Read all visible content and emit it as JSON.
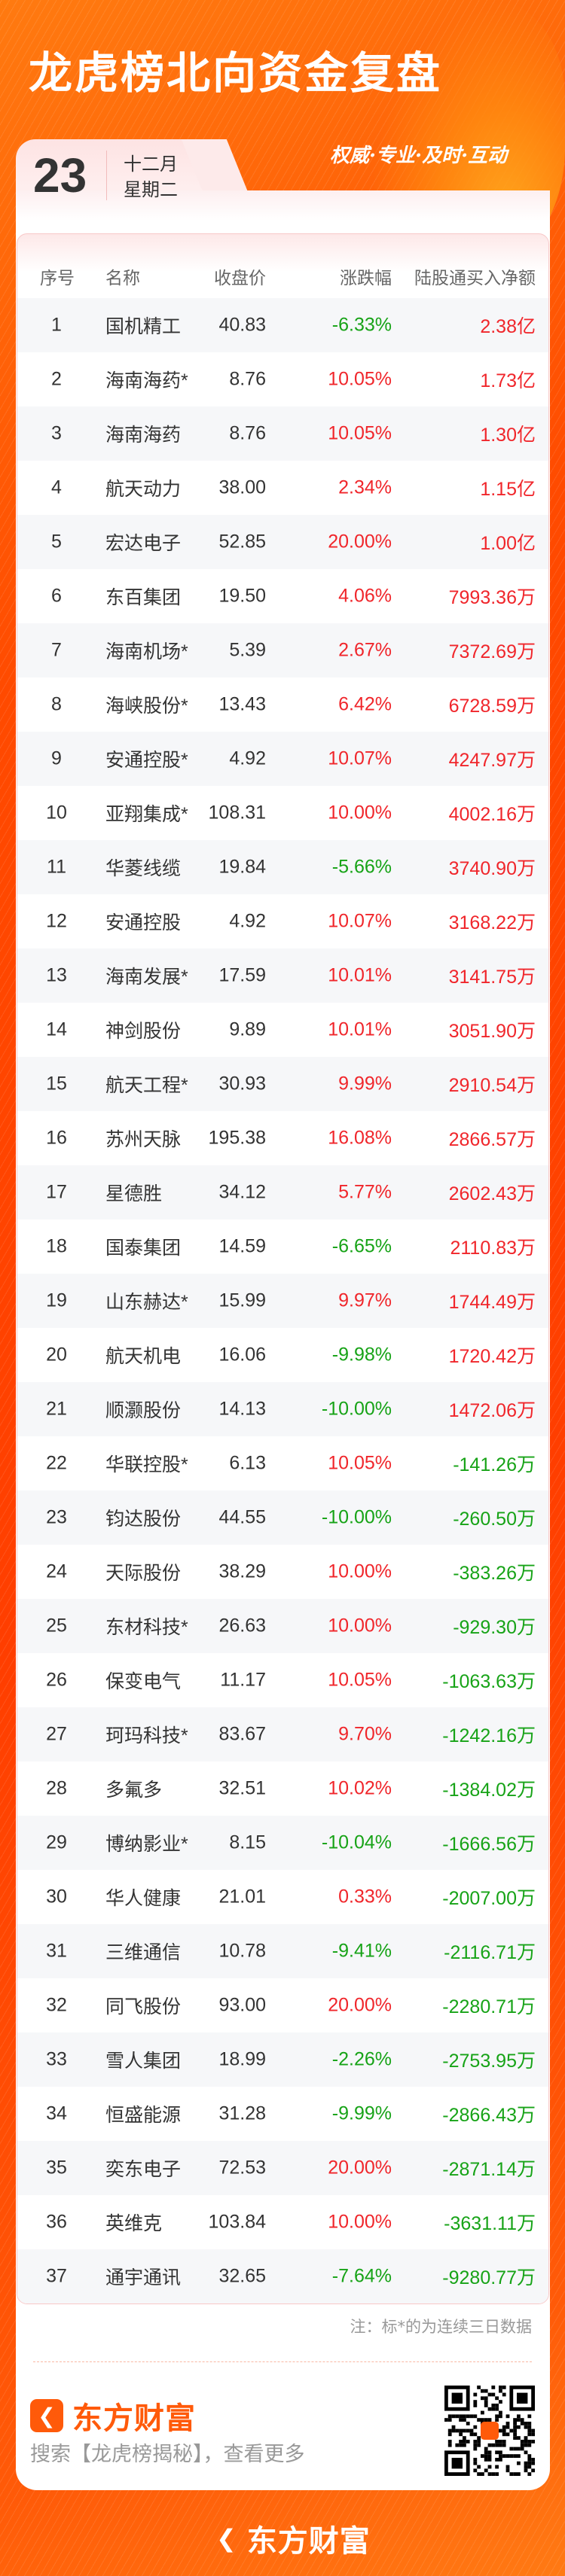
{
  "header": {
    "title": "龙虎榜北向资金复盘",
    "slogan": "权威·专业·及时·互动"
  },
  "date": {
    "day": "23",
    "month": "十二月",
    "weekday": "星期二"
  },
  "colors": {
    "up": "#f0262b",
    "down": "#17a317",
    "brand": "#ff5a0a"
  },
  "table": {
    "columns": [
      "序号",
      "名称",
      "收盘价",
      "涨跌幅",
      "陆股通买入净额"
    ],
    "rows": [
      [
        "1",
        "国机精工",
        "40.83",
        "-6.33%",
        "2.38亿"
      ],
      [
        "2",
        "海南海药*",
        "8.76",
        "10.05%",
        "1.73亿"
      ],
      [
        "3",
        "海南海药",
        "8.76",
        "10.05%",
        "1.30亿"
      ],
      [
        "4",
        "航天动力",
        "38.00",
        "2.34%",
        "1.15亿"
      ],
      [
        "5",
        "宏达电子",
        "52.85",
        "20.00%",
        "1.00亿"
      ],
      [
        "6",
        "东百集团",
        "19.50",
        "4.06%",
        "7993.36万"
      ],
      [
        "7",
        "海南机场*",
        "5.39",
        "2.67%",
        "7372.69万"
      ],
      [
        "8",
        "海峡股份*",
        "13.43",
        "6.42%",
        "6728.59万"
      ],
      [
        "9",
        "安通控股*",
        "4.92",
        "10.07%",
        "4247.97万"
      ],
      [
        "10",
        "亚翔集成*",
        "108.31",
        "10.00%",
        "4002.16万"
      ],
      [
        "11",
        "华菱线缆",
        "19.84",
        "-5.66%",
        "3740.90万"
      ],
      [
        "12",
        "安通控股",
        "4.92",
        "10.07%",
        "3168.22万"
      ],
      [
        "13",
        "海南发展*",
        "17.59",
        "10.01%",
        "3141.75万"
      ],
      [
        "14",
        "神剑股份",
        "9.89",
        "10.01%",
        "3051.90万"
      ],
      [
        "15",
        "航天工程*",
        "30.93",
        "9.99%",
        "2910.54万"
      ],
      [
        "16",
        "苏州天脉",
        "195.38",
        "16.08%",
        "2866.57万"
      ],
      [
        "17",
        "星德胜",
        "34.12",
        "5.77%",
        "2602.43万"
      ],
      [
        "18",
        "国泰集团",
        "14.59",
        "-6.65%",
        "2110.83万"
      ],
      [
        "19",
        "山东赫达*",
        "15.99",
        "9.97%",
        "1744.49万"
      ],
      [
        "20",
        "航天机电",
        "16.06",
        "-9.98%",
        "1720.42万"
      ],
      [
        "21",
        "顺灏股份",
        "14.13",
        "-10.00%",
        "1472.06万"
      ],
      [
        "22",
        "华联控股*",
        "6.13",
        "10.05%",
        "-141.26万"
      ],
      [
        "23",
        "钧达股份",
        "44.55",
        "-10.00%",
        "-260.50万"
      ],
      [
        "24",
        "天际股份",
        "38.29",
        "10.00%",
        "-383.26万"
      ],
      [
        "25",
        "东材科技*",
        "26.63",
        "10.00%",
        "-929.30万"
      ],
      [
        "26",
        "保变电气",
        "11.17",
        "10.05%",
        "-1063.63万"
      ],
      [
        "27",
        "珂玛科技*",
        "83.67",
        "9.70%",
        "-1242.16万"
      ],
      [
        "28",
        "多氟多",
        "32.51",
        "10.02%",
        "-1384.02万"
      ],
      [
        "29",
        "博纳影业*",
        "8.15",
        "-10.04%",
        "-1666.56万"
      ],
      [
        "30",
        "华人健康",
        "21.01",
        "0.33%",
        "-2007.00万"
      ],
      [
        "31",
        "三维通信",
        "10.78",
        "-9.41%",
        "-2116.71万"
      ],
      [
        "32",
        "同飞股份",
        "93.00",
        "20.00%",
        "-2280.71万"
      ],
      [
        "33",
        "雪人集团",
        "18.99",
        "-2.26%",
        "-2753.95万"
      ],
      [
        "34",
        "恒盛能源",
        "31.28",
        "-9.99%",
        "-2866.43万"
      ],
      [
        "35",
        "奕东电子",
        "72.53",
        "20.00%",
        "-2871.14万"
      ],
      [
        "36",
        "英维克",
        "103.84",
        "10.00%",
        "-3631.11万"
      ],
      [
        "37",
        "通宇通讯",
        "32.65",
        "-7.64%",
        "-9280.77万"
      ]
    ]
  },
  "footer": {
    "note": "注：标*的为连续三日数据",
    "brand": "东方财富",
    "search_hint": "搜索【龙虎榜揭秘】，查看更多",
    "bottom_brand": "东方财富",
    "icons": [
      "eastmoney-logo-icon",
      "qr-code"
    ]
  }
}
